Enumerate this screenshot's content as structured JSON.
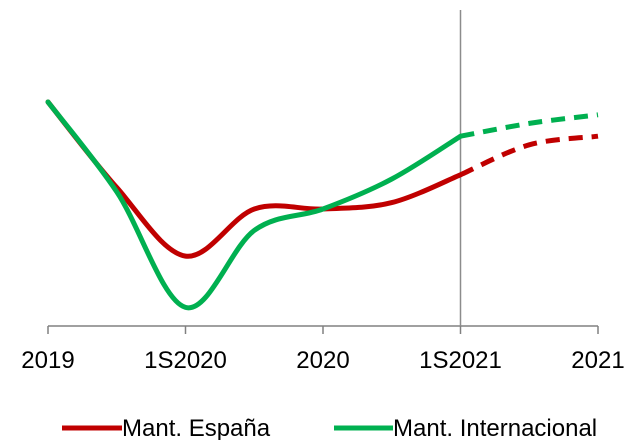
{
  "chart_data": {
    "type": "line",
    "title": "",
    "xlabel": "",
    "ylabel": "",
    "categories": [
      "2019",
      "1S2020",
      "2020",
      "1S2021",
      "2021"
    ],
    "projection_start": "1S2021",
    "grid": false,
    "legend_position": "bottom",
    "series": [
      {
        "name": "Mant. España",
        "color": "#c00000",
        "actual": [
          {
            "x": 0,
            "y": 100
          },
          {
            "x": 0.5,
            "y": 60
          },
          {
            "x": 1,
            "y": 28
          },
          {
            "x": 1.5,
            "y": 50
          },
          {
            "x": 2,
            "y": 50
          },
          {
            "x": 2.5,
            "y": 53
          },
          {
            "x": 3,
            "y": 66
          }
        ],
        "projected": [
          {
            "x": 3,
            "y": 66
          },
          {
            "x": 3.5,
            "y": 80
          },
          {
            "x": 4,
            "y": 84
          }
        ]
      },
      {
        "name": "Mant. Internacional",
        "color": "#00b050",
        "actual": [
          {
            "x": 0,
            "y": 100
          },
          {
            "x": 0.5,
            "y": 58
          },
          {
            "x": 1,
            "y": 4
          },
          {
            "x": 1.5,
            "y": 40
          },
          {
            "x": 2,
            "y": 50
          },
          {
            "x": 2.5,
            "y": 64
          },
          {
            "x": 3,
            "y": 84
          }
        ],
        "projected": [
          {
            "x": 3,
            "y": 84
          },
          {
            "x": 3.5,
            "y": 90
          },
          {
            "x": 4,
            "y": 94
          }
        ]
      }
    ]
  }
}
